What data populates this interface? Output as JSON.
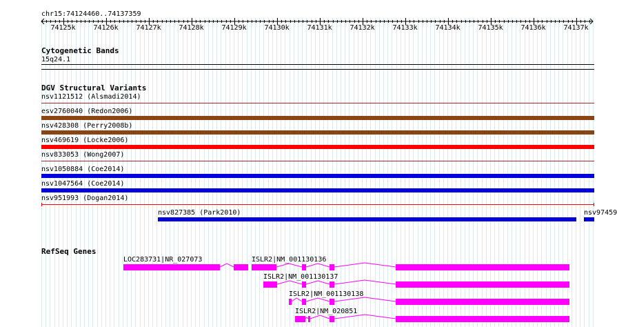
{
  "ruler": {
    "region_label": "chr15:74124460..74137359",
    "ticks": [
      "74125k",
      "74126k",
      "74127k",
      "74128k",
      "74129k",
      "74130k",
      "74131k",
      "74132k",
      "74133k",
      "74134k",
      "74135k",
      "74136k",
      "74137k"
    ]
  },
  "tracks": {
    "cytoband": {
      "title": "Cytogenetic Bands",
      "band": "15q24.1"
    },
    "dgv": {
      "title": "DGV Structural Variants",
      "variants": [
        {
          "label": "nsv1121512 (Alsmadi2014)",
          "color": "#a52a2a"
        },
        {
          "label": "esv2760040 (Redon2006)",
          "color": "#8b4513"
        },
        {
          "label": "nsv428308 (Perry2008b)",
          "color": "#8b4513"
        },
        {
          "label": "nsv469619 (Locke2006)",
          "color": "#ff0000"
        },
        {
          "label": "nsv833053 (Wong2007)",
          "color": "#a52a2a"
        },
        {
          "label": "nsv1050884 (Coe2014)",
          "color": "#0000dd"
        },
        {
          "label": "nsv1047564 (Coe2014)",
          "color": "#0000dd"
        },
        {
          "label": "nsv951993 (Dogan2014)",
          "color": "#ff0000"
        },
        {
          "label": "nsv827385 (Park2010)",
          "color": "#0000dd"
        },
        {
          "label": "nsv97459",
          "color": "#0000dd"
        }
      ]
    },
    "refseq": {
      "title": "RefSeq Genes",
      "color": "#ff00ff",
      "genes": [
        {
          "label": "LOC283731|NR_027073"
        },
        {
          "label": "ISLR2|NM_001130136"
        },
        {
          "label": "ISLR2|NM_001130137"
        },
        {
          "label": "ISLR2|NM_001130138"
        },
        {
          "label": "ISLR2|NM_020851"
        }
      ]
    }
  }
}
